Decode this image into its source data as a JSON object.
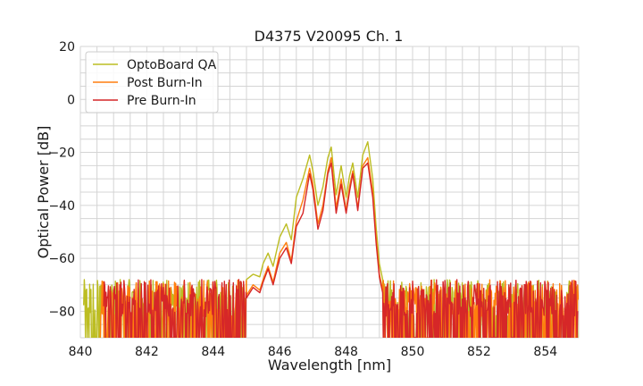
{
  "chart_data": {
    "type": "line",
    "title": "D4375 V20095 Ch. 1",
    "xlabel": "Wavelength [nm]",
    "ylabel": "Optical Power [dB]",
    "xlim": [
      840,
      855
    ],
    "ylim": [
      -90,
      20
    ],
    "x_ticks": [
      840,
      842,
      844,
      846,
      848,
      850,
      852,
      854
    ],
    "y_ticks": [
      20,
      0,
      -20,
      -40,
      -60,
      -80
    ],
    "x_minor_step": 0.5,
    "y_minor_step": 5,
    "grid": true,
    "legend_position": "top-left",
    "noise_floor": {
      "center": -75,
      "low": -90,
      "high": -68
    },
    "series": [
      {
        "name": "OptoBoard QA",
        "color": "#bcbd22",
        "noise_start": 840.1,
        "noise_end": 849.4,
        "x": [
          845.0,
          845.2,
          845.4,
          845.5,
          845.65,
          845.8,
          846.0,
          846.2,
          846.35,
          846.5,
          846.7,
          846.9,
          847.0,
          847.15,
          847.3,
          847.45,
          847.55,
          847.7,
          847.85,
          848.0,
          848.1,
          848.2,
          848.35,
          848.5,
          848.65,
          848.8,
          848.9,
          849.0,
          849.1
        ],
        "y": [
          -68,
          -66,
          -67,
          -62,
          -58,
          -63,
          -52,
          -47,
          -53,
          -37,
          -30,
          -21,
          -27,
          -40,
          -33,
          -22,
          -18,
          -36,
          -25,
          -37,
          -29,
          -24,
          -37,
          -21,
          -16,
          -30,
          -48,
          -62,
          -68
        ]
      },
      {
        "name": "Post Burn-In",
        "color": "#ff7f0e",
        "noise_start": 840.6,
        "noise_end": 849.3,
        "x": [
          845.0,
          845.2,
          845.4,
          845.5,
          845.65,
          845.8,
          846.0,
          846.2,
          846.35,
          846.5,
          846.7,
          846.9,
          847.0,
          847.15,
          847.3,
          847.45,
          847.55,
          847.7,
          847.85,
          848.0,
          848.1,
          848.2,
          848.35,
          848.5,
          848.65,
          848.8,
          848.9,
          849.0,
          849.1
        ],
        "y": [
          -74,
          -70,
          -72,
          -68,
          -63,
          -69,
          -58,
          -54,
          -61,
          -46,
          -38,
          -26,
          -32,
          -47,
          -40,
          -27,
          -22,
          -41,
          -30,
          -42,
          -33,
          -27,
          -41,
          -25,
          -22,
          -35,
          -52,
          -66,
          -72
        ]
      },
      {
        "name": "Pre Burn-In",
        "color": "#d62728",
        "noise_start": 840.7,
        "noise_end": 849.3,
        "x": [
          845.0,
          845.2,
          845.4,
          845.5,
          845.65,
          845.8,
          846.0,
          846.2,
          846.35,
          846.5,
          846.7,
          846.9,
          847.0,
          847.15,
          847.3,
          847.45,
          847.55,
          847.7,
          847.85,
          848.0,
          848.1,
          848.2,
          848.35,
          848.5,
          848.65,
          848.8,
          848.9,
          849.0,
          849.1
        ],
        "y": [
          -75,
          -71,
          -73,
          -69,
          -64,
          -70,
          -60,
          -56,
          -62,
          -48,
          -43,
          -28,
          -34,
          -49,
          -42,
          -28,
          -24,
          -43,
          -32,
          -43,
          -35,
          -28,
          -42,
          -26,
          -24,
          -37,
          -54,
          -67,
          -73
        ]
      }
    ]
  }
}
